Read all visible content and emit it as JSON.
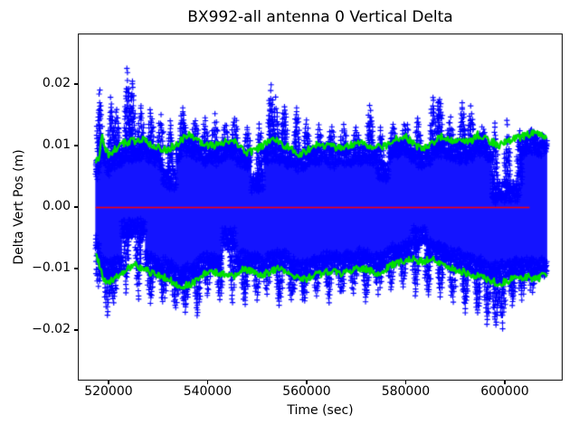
{
  "chart_data": {
    "type": "scatter",
    "title": "BX992-all antenna 0 Vertical Delta",
    "xlabel": "Time (sec)",
    "ylabel": "Delta Vert Pos (m)",
    "xlim": [
      513800,
      611700
    ],
    "ylim": [
      -0.0282,
      0.0282
    ],
    "grid": false,
    "legend": "none",
    "x_ticks": [
      {
        "value": 520000,
        "label": "520000"
      },
      {
        "value": 540000,
        "label": "540000"
      },
      {
        "value": 560000,
        "label": "560000"
      },
      {
        "value": 580000,
        "label": "580000"
      },
      {
        "value": 600000,
        "label": "600000"
      }
    ],
    "y_ticks": [
      {
        "value": 0.02,
        "label": "0.02"
      },
      {
        "value": 0.01,
        "label": "0.01"
      },
      {
        "value": 0.0,
        "label": "0.00"
      },
      {
        "value": -0.01,
        "label": "−0.01"
      },
      {
        "value": -0.02,
        "label": "−0.02"
      }
    ],
    "series": {
      "scatter": {
        "name": "vertical-delta-samples",
        "marker": "+",
        "color": "#0000ff",
        "t_range": [
          517400,
          608400
        ],
        "description": "dense noise band of + markers centered on 0, edges tracking the green envelopes, with vertical spike clusters",
        "upper_spikes": [
          [
            518200,
            0.019
          ],
          [
            520500,
            0.018
          ],
          [
            521600,
            0.016
          ],
          [
            523800,
            0.0225
          ],
          [
            524800,
            0.0205
          ],
          [
            526500,
            0.0165
          ],
          [
            528500,
            0.0158
          ],
          [
            530500,
            0.015
          ],
          [
            532500,
            0.014
          ],
          [
            535000,
            0.0163
          ],
          [
            537500,
            0.0142
          ],
          [
            539500,
            0.0145
          ],
          [
            541500,
            0.015
          ],
          [
            543500,
            0.014
          ],
          [
            545500,
            0.0152
          ],
          [
            548000,
            0.013
          ],
          [
            550500,
            0.014
          ],
          [
            552800,
            0.0197
          ],
          [
            553800,
            0.018
          ],
          [
            555500,
            0.017
          ],
          [
            558000,
            0.0163
          ],
          [
            560000,
            0.014
          ],
          [
            562500,
            0.0135
          ],
          [
            565000,
            0.013
          ],
          [
            567500,
            0.0135
          ],
          [
            570000,
            0.013
          ],
          [
            572800,
            0.0165
          ],
          [
            575000,
            0.013
          ],
          [
            577500,
            0.0135
          ],
          [
            580000,
            0.014
          ],
          [
            582500,
            0.015
          ],
          [
            585500,
            0.0178
          ],
          [
            586800,
            0.019
          ],
          [
            589000,
            0.0145
          ],
          [
            591500,
            0.017
          ],
          [
            593200,
            0.0163
          ],
          [
            595500,
            0.013
          ],
          [
            598000,
            0.0135
          ],
          [
            600500,
            0.014
          ],
          [
            603000,
            0.013
          ],
          [
            605500,
            0.0125
          ]
        ],
        "lower_spikes": [
          [
            518000,
            -0.013
          ],
          [
            519800,
            -0.0176
          ],
          [
            521000,
            -0.0155
          ],
          [
            523500,
            -0.0145
          ],
          [
            526000,
            -0.015
          ],
          [
            528500,
            -0.0155
          ],
          [
            531000,
            -0.016
          ],
          [
            533500,
            -0.0165
          ],
          [
            535500,
            -0.017
          ],
          [
            538000,
            -0.0178
          ],
          [
            540000,
            -0.0145
          ],
          [
            542500,
            -0.015
          ],
          [
            545000,
            -0.0155
          ],
          [
            547500,
            -0.0165
          ],
          [
            550000,
            -0.015
          ],
          [
            552000,
            -0.014
          ],
          [
            554500,
            -0.0165
          ],
          [
            557000,
            -0.0155
          ],
          [
            559500,
            -0.016
          ],
          [
            562000,
            -0.0145
          ],
          [
            564500,
            -0.0155
          ],
          [
            567000,
            -0.0145
          ],
          [
            569500,
            -0.014
          ],
          [
            572000,
            -0.0155
          ],
          [
            574500,
            -0.014
          ],
          [
            577000,
            -0.0135
          ],
          [
            579500,
            -0.013
          ],
          [
            582000,
            -0.0145
          ],
          [
            584500,
            -0.015
          ],
          [
            587000,
            -0.0145
          ],
          [
            589500,
            -0.016
          ],
          [
            592000,
            -0.017
          ],
          [
            594500,
            -0.018
          ],
          [
            596500,
            -0.019
          ],
          [
            598200,
            -0.0205
          ],
          [
            599500,
            -0.0196
          ],
          [
            601500,
            -0.016
          ],
          [
            603500,
            -0.015
          ],
          [
            605500,
            -0.014
          ]
        ],
        "band_dips": [
          {
            "side": "upper",
            "t0": 530800,
            "t1": 533600,
            "edge": 0.006
          },
          {
            "side": "upper",
            "t0": 548800,
            "t1": 551400,
            "edge": 0.0055
          },
          {
            "side": "upper",
            "t0": 574300,
            "t1": 576600,
            "edge": 0.007
          },
          {
            "side": "upper",
            "t0": 597300,
            "t1": 603000,
            "edge": 0.0038
          },
          {
            "side": "lower",
            "t0": 522600,
            "t1": 527400,
            "edge": -0.005
          },
          {
            "side": "lower",
            "t0": 543000,
            "t1": 545600,
            "edge": -0.0066
          },
          {
            "side": "lower",
            "t0": 581300,
            "t1": 584200,
            "edge": -0.0062
          }
        ]
      },
      "upper_envelope": {
        "name": "upper-envelope-line",
        "color": "#00e000",
        "points": [
          [
            517400,
            0.0075
          ],
          [
            518000,
            0.008
          ],
          [
            518700,
            0.0117
          ],
          [
            519300,
            0.0095
          ],
          [
            520200,
            0.0083
          ],
          [
            521500,
            0.0095
          ],
          [
            523000,
            0.0104
          ],
          [
            525000,
            0.0107
          ],
          [
            526500,
            0.011
          ],
          [
            528000,
            0.0104
          ],
          [
            529500,
            0.01
          ],
          [
            531000,
            0.0092
          ],
          [
            532500,
            0.0096
          ],
          [
            534000,
            0.0104
          ],
          [
            536000,
            0.0118
          ],
          [
            537500,
            0.0112
          ],
          [
            539000,
            0.0103
          ],
          [
            541000,
            0.01
          ],
          [
            543000,
            0.0104
          ],
          [
            545000,
            0.011
          ],
          [
            546500,
            0.0096
          ],
          [
            548000,
            0.0088
          ],
          [
            549500,
            0.0092
          ],
          [
            551000,
            0.01
          ],
          [
            552500,
            0.0106
          ],
          [
            554000,
            0.0108
          ],
          [
            555500,
            0.01
          ],
          [
            557000,
            0.0094
          ],
          [
            558500,
            0.0086
          ],
          [
            560000,
            0.0092
          ],
          [
            562000,
            0.01
          ],
          [
            564000,
            0.0101
          ],
          [
            566000,
            0.0096
          ],
          [
            568000,
            0.0099
          ],
          [
            570000,
            0.0104
          ],
          [
            572000,
            0.0101
          ],
          [
            574000,
            0.0096
          ],
          [
            576000,
            0.01
          ],
          [
            578000,
            0.011
          ],
          [
            580000,
            0.0114
          ],
          [
            581500,
            0.0104
          ],
          [
            583000,
            0.0095
          ],
          [
            584500,
            0.0098
          ],
          [
            586000,
            0.0109
          ],
          [
            587500,
            0.0114
          ],
          [
            589000,
            0.011
          ],
          [
            591000,
            0.0106
          ],
          [
            593000,
            0.0105
          ],
          [
            594500,
            0.0118
          ],
          [
            596000,
            0.0112
          ],
          [
            597500,
            0.0105
          ],
          [
            599000,
            0.01
          ],
          [
            601000,
            0.0108
          ],
          [
            603000,
            0.0113
          ],
          [
            605000,
            0.0118
          ],
          [
            606500,
            0.0119
          ],
          [
            608400,
            0.0114
          ]
        ]
      },
      "lower_envelope": {
        "name": "lower-envelope-line",
        "color": "#00e000",
        "points": [
          [
            517400,
            -0.007
          ],
          [
            518800,
            -0.0115
          ],
          [
            520000,
            -0.0121
          ],
          [
            521500,
            -0.0114
          ],
          [
            523000,
            -0.0105
          ],
          [
            525400,
            -0.0094
          ],
          [
            527000,
            -0.01
          ],
          [
            529000,
            -0.0108
          ],
          [
            531000,
            -0.0114
          ],
          [
            533000,
            -0.0122
          ],
          [
            535000,
            -0.0129
          ],
          [
            537000,
            -0.0124
          ],
          [
            539000,
            -0.011
          ],
          [
            541000,
            -0.0104
          ],
          [
            543000,
            -0.0109
          ],
          [
            545000,
            -0.0114
          ],
          [
            547000,
            -0.01
          ],
          [
            549000,
            -0.0104
          ],
          [
            551000,
            -0.011
          ],
          [
            553000,
            -0.0104
          ],
          [
            555000,
            -0.0099
          ],
          [
            557000,
            -0.0113
          ],
          [
            559000,
            -0.0119
          ],
          [
            561000,
            -0.0113
          ],
          [
            563000,
            -0.0108
          ],
          [
            565000,
            -0.0104
          ],
          [
            567000,
            -0.0109
          ],
          [
            569000,
            -0.0104
          ],
          [
            571000,
            -0.0099
          ],
          [
            573000,
            -0.0104
          ],
          [
            575000,
            -0.0108
          ],
          [
            577000,
            -0.0094
          ],
          [
            579000,
            -0.0089
          ],
          [
            581000,
            -0.0084
          ],
          [
            583000,
            -0.0089
          ],
          [
            585000,
            -0.0084
          ],
          [
            587000,
            -0.0089
          ],
          [
            589000,
            -0.0099
          ],
          [
            591000,
            -0.0104
          ],
          [
            593000,
            -0.0109
          ],
          [
            595000,
            -0.0114
          ],
          [
            597000,
            -0.0119
          ],
          [
            599000,
            -0.0124
          ],
          [
            601000,
            -0.0119
          ],
          [
            603000,
            -0.0114
          ],
          [
            605000,
            -0.0114
          ],
          [
            606500,
            -0.0116
          ],
          [
            608400,
            -0.011
          ]
        ]
      },
      "zero_line": {
        "name": "zero-reference-line",
        "color": "#ff0000",
        "y": 0.0,
        "t_range": [
          517400,
          605000
        ]
      }
    }
  }
}
